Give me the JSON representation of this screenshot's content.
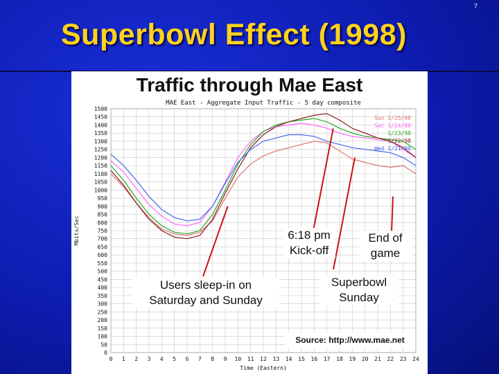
{
  "slide": {
    "number": "7",
    "title": "Superbowl Effect (1998)"
  },
  "figure": {
    "heading": "Traffic through Mae East"
  },
  "annotations": {
    "kickoff": "6:18 pm\nKick-off",
    "end_of_game": "End of\ngame",
    "sleep_in": "Users sleep-in on\nSaturday and Sunday",
    "superbowl_sunday": "Superbowl\nSunday",
    "source": "Source: http://www.mae.net"
  },
  "colors": {
    "title": "#ffd21c",
    "background": "#0d1cb0"
  },
  "chart_data": {
    "type": "line",
    "title": "MAE East - Aggregate Input Traffic - 5 day composite",
    "xlabel": "Time (Eastern)",
    "ylabel": "Mbits/Sec",
    "xlim": [
      0,
      24
    ],
    "ylim": [
      0,
      1500
    ],
    "x_ticks": [
      0,
      1,
      2,
      3,
      4,
      5,
      6,
      7,
      8,
      9,
      10,
      11,
      12,
      13,
      14,
      15,
      16,
      17,
      18,
      19,
      20,
      21,
      22,
      23,
      24
    ],
    "y_ticks": [
      0,
      50,
      100,
      150,
      200,
      250,
      300,
      350,
      400,
      450,
      500,
      550,
      600,
      650,
      700,
      750,
      800,
      850,
      900,
      950,
      1000,
      1050,
      1100,
      1150,
      1200,
      1250,
      1300,
      1350,
      1400,
      1450,
      1500
    ],
    "grid": true,
    "legend_position": "top-right",
    "x": [
      0,
      1,
      2,
      3,
      4,
      5,
      6,
      7,
      8,
      9,
      10,
      11,
      12,
      13,
      14,
      15,
      16,
      17,
      18,
      19,
      20,
      21,
      22,
      23,
      24
    ],
    "series": [
      {
        "name": "Sun 1/25/98",
        "color": "#e07070",
        "values": [
          1100,
          1020,
          920,
          830,
          760,
          730,
          720,
          740,
          810,
          950,
          1080,
          1160,
          1210,
          1240,
          1260,
          1280,
          1300,
          1290,
          1240,
          1190,
          1170,
          1150,
          1140,
          1150,
          1100
        ]
      },
      {
        "name": "Sat 1/24/98",
        "color": "#ff66ff",
        "values": [
          1180,
          1110,
          1010,
          910,
          840,
          790,
          780,
          800,
          900,
          1050,
          1200,
          1300,
          1360,
          1390,
          1400,
          1410,
          1400,
          1380,
          1350,
          1330,
          1320,
          1310,
          1300,
          1250,
          1200
        ]
      },
      {
        "name": "1/23/98",
        "color": "#22aa22",
        "values": [
          1150,
          1060,
          950,
          850,
          780,
          740,
          730,
          750,
          850,
          1000,
          1160,
          1280,
          1360,
          1400,
          1420,
          1430,
          1440,
          1420,
          1380,
          1350,
          1330,
          1320,
          1310,
          1300,
          1250
        ]
      },
      {
        "name": "1/22/98",
        "color": "#8a1a1a",
        "values": [
          1120,
          1030,
          920,
          820,
          750,
          710,
          700,
          720,
          820,
          980,
          1130,
          1260,
          1340,
          1390,
          1420,
          1440,
          1460,
          1470,
          1430,
          1380,
          1350,
          1320,
          1300,
          1260,
          1200
        ]
      },
      {
        "name": "Wed 1/21/98",
        "color": "#4466ee",
        "values": [
          1220,
          1150,
          1060,
          960,
          880,
          830,
          810,
          820,
          900,
          1040,
          1170,
          1250,
          1300,
          1320,
          1340,
          1340,
          1330,
          1300,
          1280,
          1260,
          1250,
          1240,
          1230,
          1200,
          1150
        ]
      }
    ]
  }
}
